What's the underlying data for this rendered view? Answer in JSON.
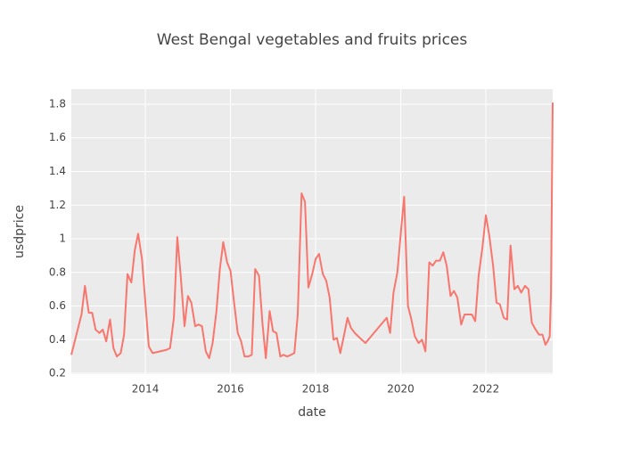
{
  "chart_data": {
    "type": "line",
    "title": "West Bengal vegetables and fruits prices",
    "x_label": "date",
    "y_label": "usdprice",
    "x": [
      2012.26,
      2012.5,
      2012.58,
      2012.67,
      2012.75,
      2012.83,
      2012.92,
      2013.0,
      2013.08,
      2013.17,
      2013.25,
      2013.33,
      2013.42,
      2013.5,
      2013.58,
      2013.67,
      2013.75,
      2013.83,
      2013.92,
      2014.0,
      2014.08,
      2014.17,
      2014.5,
      2014.58,
      2014.67,
      2014.75,
      2014.83,
      2014.92,
      2015.0,
      2015.08,
      2015.17,
      2015.25,
      2015.33,
      2015.42,
      2015.5,
      2015.58,
      2015.67,
      2015.75,
      2015.83,
      2015.92,
      2016.0,
      2016.08,
      2016.17,
      2016.25,
      2016.33,
      2016.42,
      2016.5,
      2016.58,
      2016.67,
      2016.75,
      2016.83,
      2016.92,
      2017.0,
      2017.08,
      2017.17,
      2017.25,
      2017.33,
      2017.42,
      2017.5,
      2017.58,
      2017.67,
      2017.75,
      2017.83,
      2017.92,
      2018.0,
      2018.08,
      2018.17,
      2018.25,
      2018.33,
      2018.42,
      2018.5,
      2018.58,
      2018.67,
      2018.75,
      2018.83,
      2018.92,
      2019.0,
      2019.17,
      2019.67,
      2019.75,
      2019.83,
      2019.92,
      2020.0,
      2020.08,
      2020.17,
      2020.25,
      2020.33,
      2020.42,
      2020.5,
      2020.58,
      2020.67,
      2020.75,
      2020.83,
      2020.92,
      2021.0,
      2021.08,
      2021.17,
      2021.25,
      2021.33,
      2021.42,
      2021.5,
      2021.67,
      2021.75,
      2021.83,
      2021.92,
      2022.0,
      2022.08,
      2022.17,
      2022.25,
      2022.33,
      2022.42,
      2022.5,
      2022.58,
      2022.67,
      2022.75,
      2022.83,
      2022.92,
      2023.0,
      2023.08,
      2023.17,
      2023.25,
      2023.33,
      2023.4,
      2023.45,
      2023.5,
      2023.53,
      2023.57
    ],
    "values": [
      0.31,
      0.55,
      0.72,
      0.56,
      0.56,
      0.46,
      0.44,
      0.46,
      0.39,
      0.52,
      0.35,
      0.3,
      0.32,
      0.43,
      0.79,
      0.74,
      0.93,
      1.03,
      0.88,
      0.62,
      0.36,
      0.32,
      0.34,
      0.35,
      0.53,
      1.01,
      0.78,
      0.48,
      0.66,
      0.62,
      0.48,
      0.49,
      0.48,
      0.33,
      0.29,
      0.38,
      0.57,
      0.82,
      0.98,
      0.86,
      0.81,
      0.63,
      0.44,
      0.39,
      0.3,
      0.3,
      0.31,
      0.82,
      0.78,
      0.5,
      0.29,
      0.57,
      0.45,
      0.44,
      0.3,
      0.31,
      0.3,
      0.31,
      0.32,
      0.55,
      1.27,
      1.22,
      0.71,
      0.79,
      0.88,
      0.91,
      0.79,
      0.75,
      0.65,
      0.4,
      0.41,
      0.32,
      0.43,
      0.53,
      0.47,
      0.44,
      0.42,
      0.38,
      0.53,
      0.44,
      0.68,
      0.8,
      1.03,
      1.25,
      0.6,
      0.52,
      0.42,
      0.38,
      0.4,
      0.33,
      0.86,
      0.84,
      0.87,
      0.87,
      0.92,
      0.84,
      0.66,
      0.69,
      0.65,
      0.49,
      0.55,
      0.55,
      0.51,
      0.78,
      0.95,
      1.14,
      1.02,
      0.84,
      0.62,
      0.61,
      0.53,
      0.52,
      0.96,
      0.7,
      0.72,
      0.68,
      0.72,
      0.7,
      0.5,
      0.46,
      0.43,
      0.43,
      0.37,
      0.39,
      0.42,
      0.68,
      1.81
    ],
    "color": "#f8766d",
    "xlim": [
      2012.26,
      2023.57
    ],
    "ylim": [
      0.195,
      1.89
    ],
    "xticks": [
      2014,
      2016,
      2018,
      2020,
      2022
    ],
    "yticks": [
      0.2,
      0.4,
      0.6,
      0.8,
      1,
      1.2,
      1.4,
      1.6,
      1.8
    ],
    "grid": true
  }
}
